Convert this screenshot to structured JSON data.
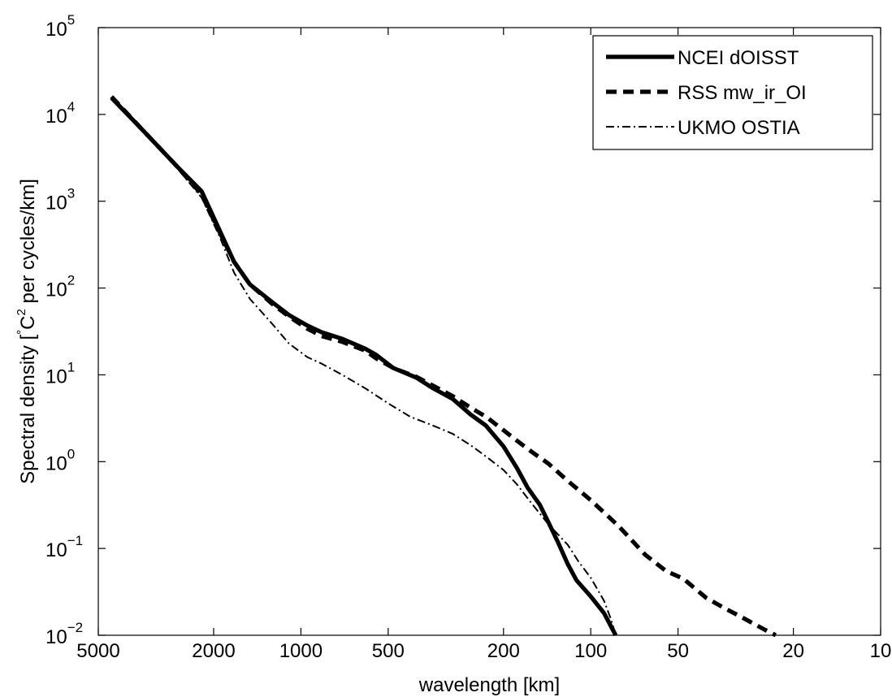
{
  "chart_data": {
    "type": "line",
    "xlabel": "wavelength [km]",
    "ylabel": {
      "main": "Spectral density [",
      "degree": "°",
      "c": "C",
      "sup": "2",
      "rest": " per cycles/km]"
    },
    "x_scale": "reciprocal-log",
    "y_scale": "log",
    "xlim": [
      5000,
      10
    ],
    "ylim": [
      0.01,
      100000
    ],
    "x_ticks": [
      {
        "value": 5000,
        "label": "5000"
      },
      {
        "value": 2000,
        "label": "2000"
      },
      {
        "value": 1000,
        "label": "1000"
      },
      {
        "value": 500,
        "label": "500"
      },
      {
        "value": 200,
        "label": "200"
      },
      {
        "value": 100,
        "label": "100"
      },
      {
        "value": 50,
        "label": "50"
      },
      {
        "value": 20,
        "label": "20"
      },
      {
        "value": 10,
        "label": "10"
      }
    ],
    "y_ticks": [
      {
        "value": 0.01,
        "base": "10",
        "exp": "−2"
      },
      {
        "value": 0.1,
        "base": "10",
        "exp": "−1"
      },
      {
        "value": 1,
        "base": "10",
        "exp": "0"
      },
      {
        "value": 10,
        "base": "10",
        "exp": "1"
      },
      {
        "value": 100,
        "base": "10",
        "exp": "2"
      },
      {
        "value": 1000,
        "base": "10",
        "exp": "3"
      },
      {
        "value": 10000,
        "base": "10",
        "exp": "4"
      },
      {
        "value": 100000,
        "base": "10",
        "exp": "5"
      }
    ],
    "grid": false,
    "legend_position": "top-right",
    "series": [
      {
        "name": "NCEI dOISST",
        "style": "solid",
        "points": [
          [
            4500,
            15500
          ],
          [
            3500,
            6500
          ],
          [
            2700,
            2600
          ],
          [
            2200,
            1300
          ],
          [
            1900,
            450
          ],
          [
            1700,
            200
          ],
          [
            1500,
            110
          ],
          [
            1250,
            68
          ],
          [
            1100,
            49
          ],
          [
            950,
            37
          ],
          [
            850,
            31
          ],
          [
            720,
            26
          ],
          [
            600,
            20
          ],
          [
            550,
            17
          ],
          [
            480,
            12
          ],
          [
            400,
            9.3
          ],
          [
            350,
            7
          ],
          [
            300,
            5.3
          ],
          [
            260,
            3.5
          ],
          [
            230,
            2.6
          ],
          [
            200,
            1.5
          ],
          [
            180,
            0.85
          ],
          [
            165,
            0.5
          ],
          [
            150,
            0.32
          ],
          [
            140,
            0.2
          ],
          [
            130,
            0.12
          ],
          [
            120,
            0.066
          ],
          [
            112,
            0.043
          ],
          [
            100,
            0.028
          ],
          [
            90,
            0.018
          ],
          [
            82,
            0.01
          ]
        ]
      },
      {
        "name": "RSS mw_ir_OI",
        "style": "dashed",
        "points": [
          [
            4500,
            16000
          ],
          [
            3500,
            6500
          ],
          [
            2700,
            2600
          ],
          [
            2200,
            1200
          ],
          [
            1900,
            430
          ],
          [
            1700,
            200
          ],
          [
            1500,
            110
          ],
          [
            1250,
            65
          ],
          [
            1100,
            47
          ],
          [
            950,
            34
          ],
          [
            850,
            28
          ],
          [
            720,
            24
          ],
          [
            600,
            19
          ],
          [
            550,
            15.5
          ],
          [
            480,
            12
          ],
          [
            400,
            9.5
          ],
          [
            350,
            7.5
          ],
          [
            300,
            5.7
          ],
          [
            260,
            4.2
          ],
          [
            230,
            3.3
          ],
          [
            200,
            2.3
          ],
          [
            180,
            1.75
          ],
          [
            160,
            1.3
          ],
          [
            140,
            0.95
          ],
          [
            120,
            0.6
          ],
          [
            100,
            0.36
          ],
          [
            80,
            0.18
          ],
          [
            65,
            0.085
          ],
          [
            55,
            0.055
          ],
          [
            48,
            0.045
          ],
          [
            40,
            0.027
          ],
          [
            35,
            0.021
          ],
          [
            30,
            0.016
          ],
          [
            25,
            0.0115
          ],
          [
            23,
            0.01
          ]
        ]
      },
      {
        "name": "UKMO OSTIA",
        "style": "dash-dot",
        "points": [
          [
            4500,
            15000
          ],
          [
            3500,
            6200
          ],
          [
            2700,
            2500
          ],
          [
            2200,
            1100
          ],
          [
            1900,
            380
          ],
          [
            1700,
            150
          ],
          [
            1500,
            75
          ],
          [
            1250,
            38
          ],
          [
            1100,
            23
          ],
          [
            950,
            16
          ],
          [
            850,
            13.5
          ],
          [
            720,
            10
          ],
          [
            600,
            7
          ],
          [
            500,
            4.7
          ],
          [
            420,
            3.3
          ],
          [
            350,
            2.6
          ],
          [
            300,
            2.1
          ],
          [
            260,
            1.55
          ],
          [
            230,
            1.15
          ],
          [
            200,
            0.8
          ],
          [
            180,
            0.55
          ],
          [
            160,
            0.33
          ],
          [
            140,
            0.19
          ],
          [
            120,
            0.11
          ],
          [
            110,
            0.07
          ],
          [
            100,
            0.046
          ],
          [
            90,
            0.025
          ],
          [
            85,
            0.015
          ],
          [
            82,
            0.01
          ]
        ]
      }
    ]
  }
}
